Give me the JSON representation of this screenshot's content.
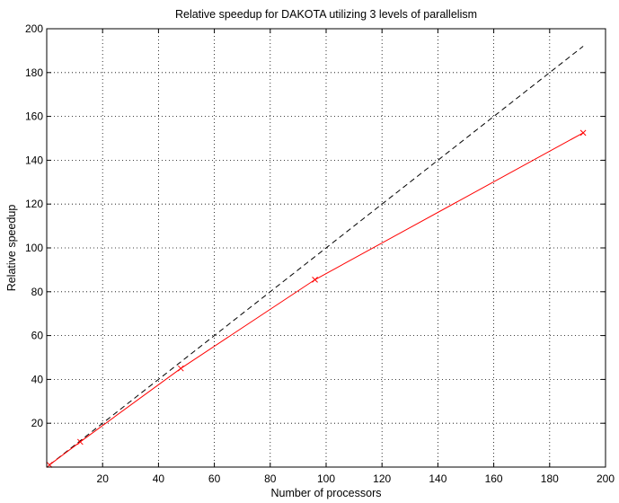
{
  "chart_data": {
    "type": "line",
    "title": "Relative speedup for DAKOTA utilizing 3 levels of parallelism",
    "xlabel": "Number of processors",
    "ylabel": "Relative speedup",
    "xlim": [
      0,
      200
    ],
    "ylim": [
      0,
      200
    ],
    "xticks": [
      20,
      40,
      60,
      80,
      100,
      120,
      140,
      160,
      180,
      200
    ],
    "yticks": [
      20,
      40,
      60,
      80,
      100,
      120,
      140,
      160,
      180,
      200
    ],
    "grid": true,
    "series": [
      {
        "style": "dashed",
        "color": "#000000",
        "x": [
          1,
          192
        ],
        "y": [
          1,
          192
        ]
      },
      {
        "style": "solid",
        "marker": "x",
        "color": "#ff0000",
        "x": [
          1,
          12,
          48,
          96,
          192
        ],
        "y": [
          1,
          11.5,
          45,
          85.5,
          152.5
        ]
      }
    ]
  }
}
